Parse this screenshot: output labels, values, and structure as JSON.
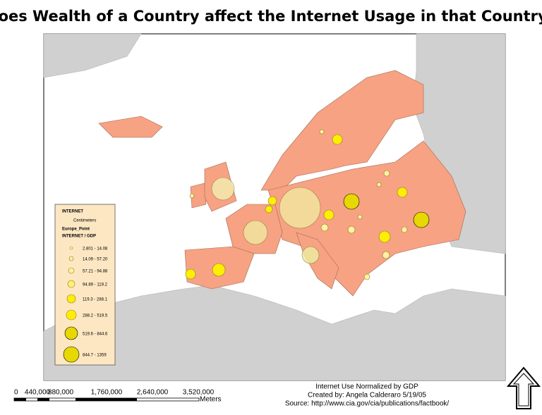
{
  "header": {
    "title": "Does Wealth of a Country affect the Internet Usage in that Country?"
  },
  "legend": {
    "heading": "INTERNET",
    "symbol_label": "Centimeters",
    "layer": "Europe_Point",
    "field": "INTERNET / GDP",
    "classes": [
      "2.801 - 14.08",
      "14.09 - 57.20",
      "57.21 - 94.88",
      "94.89 - 119.2",
      "119.3 - 288.1",
      "288.2 - 519.5",
      "519.6 - 844.6",
      "844.7 - 1359"
    ]
  },
  "scale_bar": {
    "labels": [
      "0",
      "440,000",
      "880,000",
      "1,760,000",
      "2,640,000",
      "3,520,000"
    ],
    "unit": "Meters"
  },
  "credits": [
    "Internet Use Normalized by GDP",
    "Created by: Angela Calderaro 5/19/05",
    "Source: http://www.cia.gov/cia/publications/factbook/"
  ]
}
